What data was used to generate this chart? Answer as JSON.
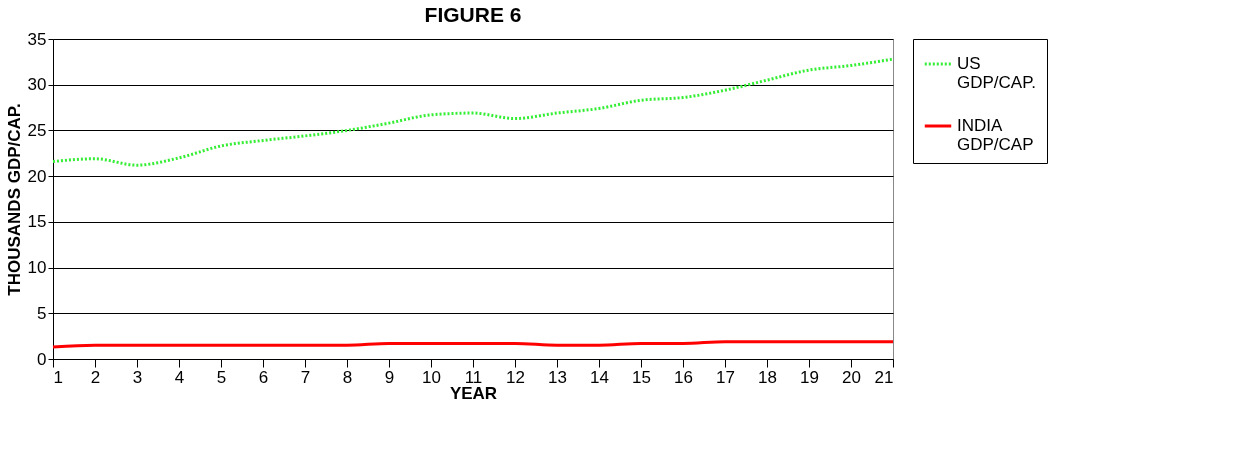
{
  "chart_data": {
    "type": "line",
    "title": "FIGURE 6",
    "xlabel": "YEAR",
    "ylabel": "THOUSANDS GDP/CAP.",
    "x": [
      1,
      2,
      3,
      4,
      5,
      6,
      7,
      8,
      9,
      10,
      11,
      12,
      13,
      14,
      15,
      16,
      17,
      18,
      19,
      20,
      21
    ],
    "series": [
      {
        "name": "US GDP/CAP.",
        "color": "#33ee33",
        "line_style": "dotted",
        "values": [
          21.6,
          21.9,
          21.2,
          22.0,
          23.3,
          23.9,
          24.4,
          25.0,
          25.8,
          26.7,
          26.9,
          26.3,
          26.9,
          27.4,
          28.3,
          28.6,
          29.4,
          30.5,
          31.6,
          32.1,
          32.8
        ]
      },
      {
        "name": "INDIA GDP/CAP",
        "color": "#ff0000",
        "line_style": "solid",
        "values": [
          1.3,
          1.5,
          1.5,
          1.5,
          1.5,
          1.5,
          1.5,
          1.5,
          1.7,
          1.7,
          1.7,
          1.7,
          1.5,
          1.5,
          1.7,
          1.7,
          1.9,
          1.9,
          1.9,
          1.9,
          1.9
        ]
      }
    ],
    "xlim": [
      1,
      21
    ],
    "xticks": [
      1,
      2,
      3,
      4,
      5,
      6,
      7,
      8,
      9,
      10,
      11,
      12,
      13,
      14,
      15,
      16,
      17,
      18,
      19,
      20,
      21
    ],
    "ylim": [
      0,
      35
    ],
    "yticks": [
      0,
      5,
      10,
      15,
      20,
      25,
      30,
      35
    ],
    "grid": "y",
    "legend": "right",
    "marker": "none"
  }
}
